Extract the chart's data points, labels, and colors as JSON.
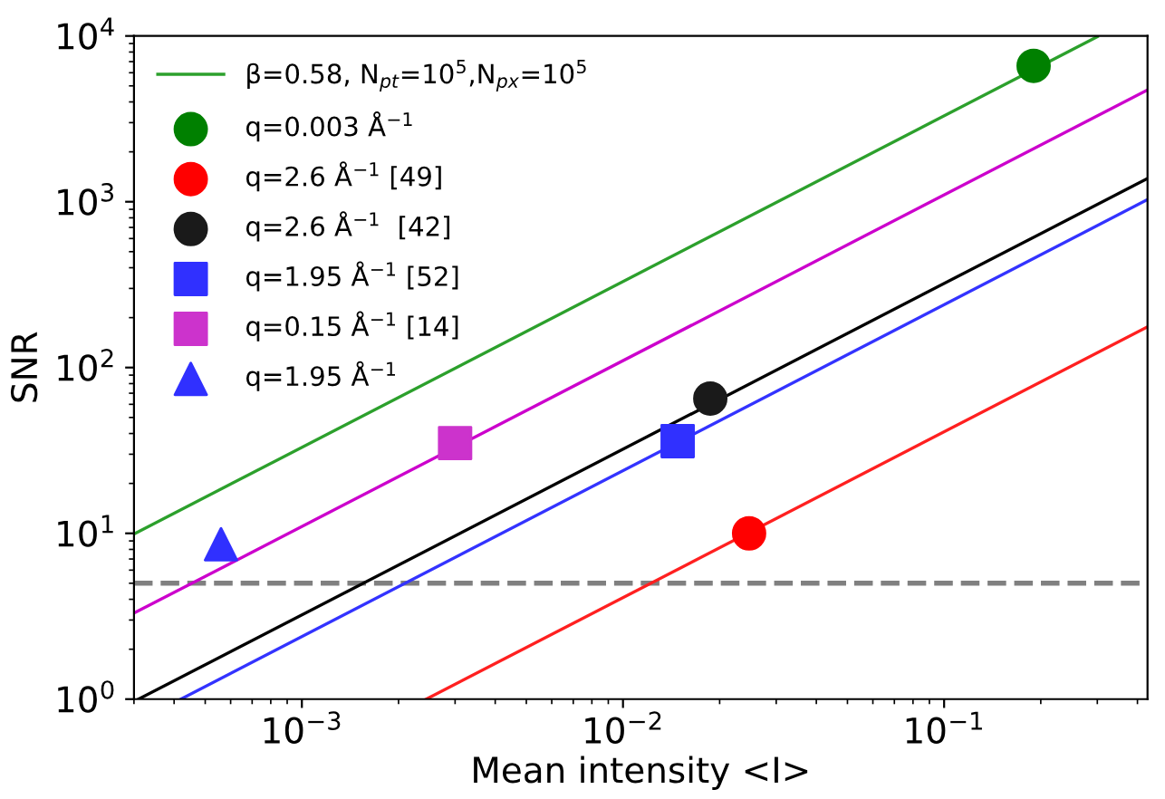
{
  "chart_data": {
    "type": "line",
    "xlabel": "Mean intensity <I>",
    "ylabel": "SNR",
    "log": "xy",
    "grid": false,
    "legend": "top left",
    "xlim": [
      0.0003,
      0.43
    ],
    "ylim": [
      1,
      10000
    ],
    "xticks": [
      {
        "value": 0.001,
        "label": "10$^{−3}$"
      },
      {
        "value": 0.01,
        "label": "10$^{−2}$"
      },
      {
        "value": 0.1,
        "label": "10$^{−1}$"
      }
    ],
    "yticks": [
      {
        "value": 1,
        "label": "10$^{0}$"
      },
      {
        "value": 10,
        "label": "10$^{1}$"
      },
      {
        "value": 100,
        "label": "10$^{2}$"
      },
      {
        "value": 1000,
        "label": "10$^{3}$"
      },
      {
        "value": 10000,
        "label": "10$^{4}$"
      }
    ],
    "ref_lines": [
      {
        "axis": "y",
        "value": 5,
        "color": "#808080",
        "line_style": "dashed"
      }
    ],
    "series": [
      {
        "name": "β=0.58, N$_{pt}$=10$^{5}$,N$_{px}$=10$^{5}$",
        "color": "#2ca02c",
        "marker": "none",
        "x": [
          0.0003,
          0.3
        ],
        "values": [
          9.9,
          9900
        ]
      },
      {
        "color": "#cc00cc",
        "marker": "none",
        "x": [
          0.0003,
          0.43
        ],
        "values": [
          3.3,
          4730
        ]
      },
      {
        "color": "#000000",
        "marker": "none",
        "x": [
          0.00031,
          0.43
        ],
        "values": [
          1.0,
          1380
        ]
      },
      {
        "color": "#3333ff",
        "marker": "none",
        "x": [
          0.00042,
          0.43
        ],
        "values": [
          1.0,
          1030
        ]
      },
      {
        "color": "#ff2020",
        "marker": "none",
        "x": [
          0.00244,
          0.43
        ],
        "values": [
          1.0,
          176
        ]
      },
      {
        "type": "scatter",
        "name": "q=0.003 Å$^{−1}$",
        "color": "#008000",
        "marker": "circle",
        "x": [
          0.19
        ],
        "values": [
          6600
        ]
      },
      {
        "type": "scatter",
        "name": "q=2.6 Å$^{−1}$ [49]",
        "color": "#ff0000",
        "marker": "circle",
        "x": [
          0.0247
        ],
        "values": [
          10
        ]
      },
      {
        "type": "scatter",
        "name": "q=2.6 Å$^{−1}$  [42]",
        "color": "#1a1a1a",
        "marker": "circle",
        "x": [
          0.0187
        ],
        "values": [
          65
        ]
      },
      {
        "type": "scatter",
        "name": "q=1.95 Å$^{−1}$ [52]",
        "color": "#3030ff",
        "marker": "square",
        "x": [
          0.0148
        ],
        "values": [
          36
        ]
      },
      {
        "type": "scatter",
        "name": "q=0.15 Å$^{−1}$ [14]",
        "color": "#cc33cc",
        "marker": "square",
        "x": [
          0.003
        ],
        "values": [
          35
        ]
      },
      {
        "type": "scatter",
        "name": "q=1.95 Å$^{−1}$",
        "color": "#3030ff",
        "marker": "triangle",
        "x": [
          0.00056
        ],
        "values": [
          8.6
        ]
      }
    ]
  }
}
